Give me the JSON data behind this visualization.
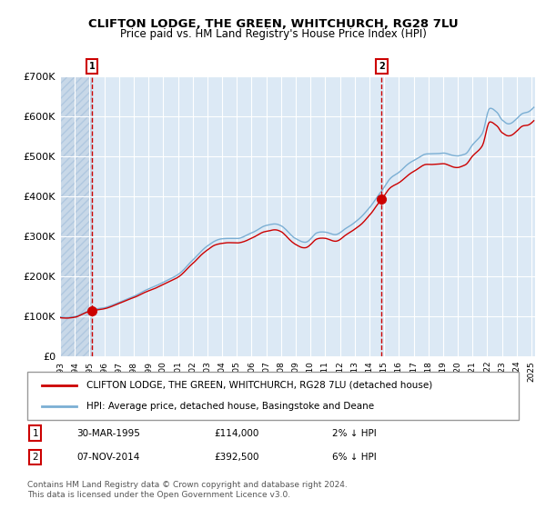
{
  "title": "CLIFTON LODGE, THE GREEN, WHITCHURCH, RG28 7LU",
  "subtitle": "Price paid vs. HM Land Registry's House Price Index (HPI)",
  "sale1_date": "30-MAR-1995",
  "sale1_price": 114000,
  "sale1_label": "1",
  "sale1_hpi_diff": "2% ↓ HPI",
  "sale2_date": "07-NOV-2014",
  "sale2_price": 392500,
  "sale2_label": "2",
  "sale2_hpi_diff": "6% ↓ HPI",
  "legend_property": "CLIFTON LODGE, THE GREEN, WHITCHURCH, RG28 7LU (detached house)",
  "legend_hpi": "HPI: Average price, detached house, Basingstoke and Deane",
  "property_line_color": "#cc0000",
  "hpi_line_color": "#7bafd4",
  "vline_color": "#cc0000",
  "dot_color": "#cc0000",
  "bg_plot_color": "#dce9f5",
  "bg_hatch_color": "#c8d8e8",
  "footer": "Contains HM Land Registry data © Crown copyright and database right 2024.\nThis data is licensed under the Open Government Licence v3.0.",
  "ylim": [
    0,
    700000
  ],
  "yticks": [
    0,
    100000,
    200000,
    300000,
    400000,
    500000,
    600000,
    700000
  ],
  "ytick_labels": [
    "£0",
    "£100K",
    "£200K",
    "£300K",
    "£400K",
    "£500K",
    "£600K",
    "£700K"
  ]
}
